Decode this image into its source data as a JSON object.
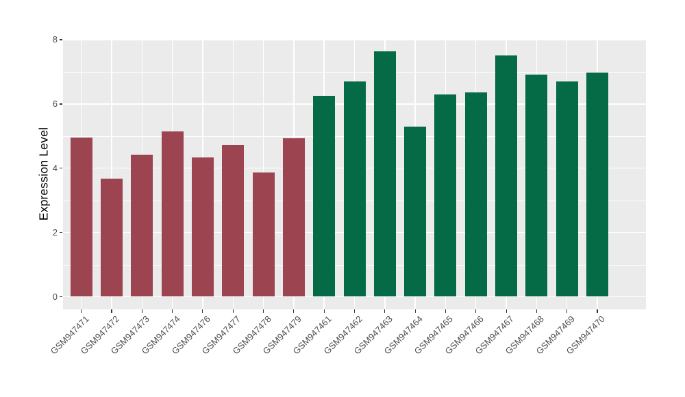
{
  "chart_data": {
    "type": "bar",
    "title": "",
    "ylabel": "Expression Level",
    "xlabel": "",
    "ylim": [
      0,
      8
    ],
    "yticks": [
      0,
      2,
      4,
      6,
      8
    ],
    "legend_position": "none",
    "grid": "white major and minor gridlines on gray panel",
    "panel_background": "#EBEBEB",
    "gridline_color": "#FFFFFF",
    "axis_text_color": "#4D4D4D",
    "axis_title_color": "#000000",
    "categories": [
      "GSM947471",
      "GSM947472",
      "GSM947473",
      "GSM947474",
      "GSM947476",
      "GSM947477",
      "GSM947478",
      "GSM947479",
      "GSM947461",
      "GSM947462",
      "GSM947463",
      "GSM947464",
      "GSM947465",
      "GSM947466",
      "GSM947467",
      "GSM947468",
      "GSM947469",
      "GSM947470"
    ],
    "values": [
      4.95,
      3.67,
      4.42,
      5.15,
      4.33,
      4.71,
      3.87,
      4.93,
      6.26,
      6.71,
      7.64,
      5.3,
      6.3,
      6.36,
      7.52,
      6.91,
      6.71,
      6.98
    ],
    "bar_colors": [
      "#9C4450",
      "#9C4450",
      "#9C4450",
      "#9C4450",
      "#9C4450",
      "#9C4450",
      "#9C4450",
      "#9C4450",
      "#046B46",
      "#046B46",
      "#046B46",
      "#046B46",
      "#046B46",
      "#046B46",
      "#046B46",
      "#046B46",
      "#046B46",
      "#046B46"
    ],
    "series": [
      {
        "name": "red-group",
        "color": "#9C4450",
        "categories": [
          "GSM947471",
          "GSM947472",
          "GSM947473",
          "GSM947474",
          "GSM947476",
          "GSM947477",
          "GSM947478",
          "GSM947479"
        ],
        "values": [
          4.95,
          3.67,
          4.42,
          5.15,
          4.33,
          4.71,
          3.87,
          4.93
        ]
      },
      {
        "name": "green-group",
        "color": "#046B46",
        "categories": [
          "GSM947461",
          "GSM947462",
          "GSM947463",
          "GSM947464",
          "GSM947465",
          "GSM947466",
          "GSM947467",
          "GSM947468",
          "GSM947469",
          "GSM947470"
        ],
        "values": [
          6.26,
          6.71,
          7.64,
          5.3,
          6.3,
          6.36,
          7.52,
          6.91,
          6.71,
          6.98
        ]
      }
    ]
  }
}
